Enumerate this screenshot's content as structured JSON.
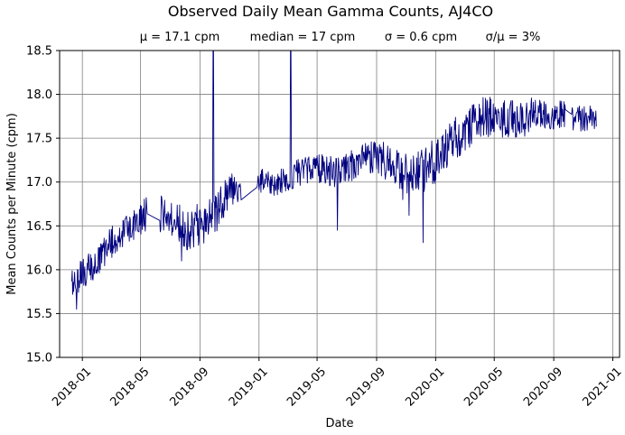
{
  "chart_data": {
    "type": "line",
    "title": "Observed Daily Mean Gamma Counts, AJ4CO",
    "subtitle": {
      "mean": "μ = 17.1 cpm",
      "median": "median = 17 cpm",
      "sigma": "σ = 0.6 cpm",
      "ratio": "σ/μ = 3%"
    },
    "xlabel": "Date",
    "ylabel": "Mean Counts per Minute (cpm)",
    "xlim": [
      "2017-11-15",
      "2021-01-15"
    ],
    "ylim": [
      15.0,
      18.5
    ],
    "grid": true,
    "line_color": "#00007f",
    "x_ticks": [
      "2018-01",
      "2018-05",
      "2018-09",
      "2019-01",
      "2019-05",
      "2019-09",
      "2020-01",
      "2020-05",
      "2020-09",
      "2021-01"
    ],
    "y_ticks": [
      "15.0",
      "15.5",
      "16.0",
      "16.5",
      "17.0",
      "17.5",
      "18.0",
      "18.5"
    ],
    "series": [
      {
        "trend": [
          [
            "2017-12-10",
            15.82
          ],
          [
            "2018-01-01",
            15.95
          ],
          [
            "2018-02-01",
            16.1
          ],
          [
            "2018-03-01",
            16.3
          ],
          [
            "2018-04-01",
            16.42
          ],
          [
            "2018-05-01",
            16.6
          ],
          [
            "2018-06-01",
            16.66
          ],
          [
            "2018-07-01",
            16.62
          ],
          [
            "2018-08-01",
            16.45
          ],
          [
            "2018-09-01",
            16.52
          ],
          [
            "2018-10-01",
            16.6
          ],
          [
            "2018-11-01",
            16.92
          ],
          [
            "2018-12-01",
            16.95
          ],
          [
            "2019-01-01",
            17.02
          ],
          [
            "2019-02-01",
            16.98
          ],
          [
            "2019-03-01",
            17.05
          ],
          [
            "2019-04-01",
            17.12
          ],
          [
            "2019-05-01",
            17.15
          ],
          [
            "2019-06-01",
            17.12
          ],
          [
            "2019-07-01",
            17.15
          ],
          [
            "2019-08-01",
            17.25
          ],
          [
            "2019-09-01",
            17.28
          ],
          [
            "2019-10-01",
            17.2
          ],
          [
            "2019-11-01",
            17.1
          ],
          [
            "2019-12-01",
            17.1
          ],
          [
            "2020-01-01",
            17.25
          ],
          [
            "2020-02-01",
            17.42
          ],
          [
            "2020-03-01",
            17.6
          ],
          [
            "2020-04-01",
            17.72
          ],
          [
            "2020-05-01",
            17.75
          ],
          [
            "2020-06-01",
            17.72
          ],
          [
            "2020-07-01",
            17.72
          ],
          [
            "2020-08-01",
            17.82
          ],
          [
            "2020-09-01",
            17.78
          ],
          [
            "2020-10-01",
            17.75
          ],
          [
            "2020-11-01",
            17.72
          ],
          [
            "2020-11-28",
            17.75
          ]
        ],
        "noise": [
          [
            "2017-12-10",
            0.1
          ],
          [
            "2018-05-01",
            0.12
          ],
          [
            "2018-09-01",
            0.15
          ],
          [
            "2019-01-01",
            0.08
          ],
          [
            "2019-09-01",
            0.12
          ],
          [
            "2020-01-01",
            0.16
          ],
          [
            "2020-11-28",
            0.09
          ]
        ],
        "gaps": [
          [
            "2018-05-15",
            "2018-06-10"
          ],
          [
            "2018-11-25",
            "2018-12-28"
          ],
          [
            "2020-09-25",
            "2020-10-08"
          ]
        ],
        "spikes": [
          [
            "2018-09-28",
            18.5
          ],
          [
            "2018-09-29",
            18.5
          ],
          [
            "2019-03-07",
            18.5
          ],
          [
            "2019-03-08",
            18.5
          ]
        ],
        "dips": [
          [
            "2017-12-20",
            15.55
          ],
          [
            "2018-07-25",
            16.1
          ],
          [
            "2019-06-12",
            16.45
          ],
          [
            "2019-11-07",
            16.62
          ],
          [
            "2019-12-06",
            16.31
          ],
          [
            "2019-10-25",
            16.8
          ]
        ]
      }
    ]
  }
}
